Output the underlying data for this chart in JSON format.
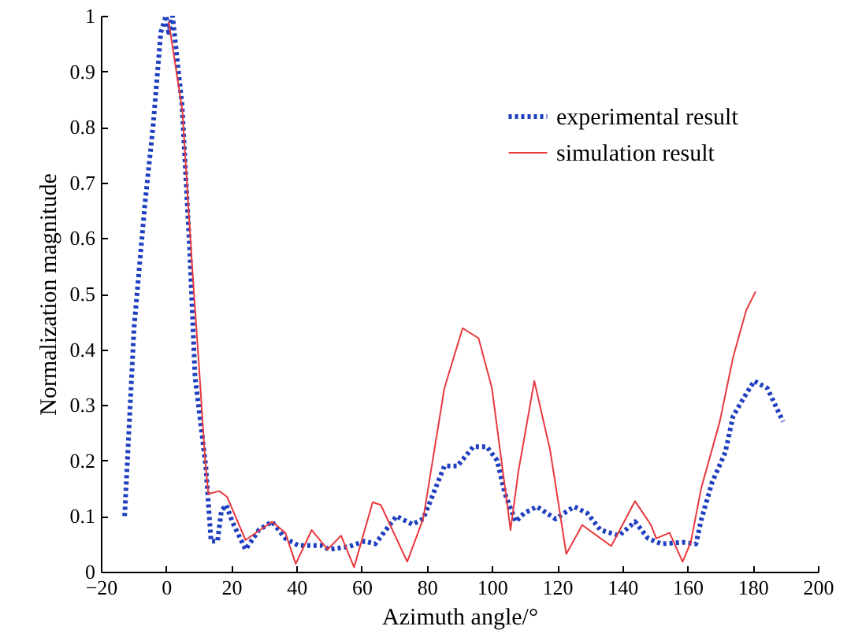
{
  "chart_data": {
    "type": "line",
    "xlabel": "Azimuth angle/°",
    "ylabel": "Normalization magnitude",
    "xlim": [
      -20,
      200
    ],
    "xticks": [
      -20,
      0,
      20,
      40,
      60,
      80,
      100,
      120,
      140,
      160,
      180,
      200
    ],
    "ylim": [
      0,
      1
    ],
    "yticks": [
      0,
      0.1,
      0.2,
      0.3,
      0.4,
      0.5,
      0.6,
      0.7,
      0.8,
      0.9,
      1
    ],
    "grid": false,
    "legend": "top right",
    "series": [
      {
        "name": "experimental result",
        "color": "#1f3fbf",
        "line_style": "dotted",
        "x": [
          -12.7,
          -9.8,
          -6.5,
          -4,
          -1.6,
          0,
          0.8,
          2,
          4.9,
          7.3,
          8.9,
          12.2,
          13.8,
          15.8,
          17,
          18.5,
          20.3,
          24.4,
          28.5,
          32.5,
          36.6,
          40.6,
          47.8,
          50,
          56,
          61,
          64.2,
          70.7,
          75.6,
          78.9,
          85.4,
          89.4,
          94.3,
          98.4,
          101.6,
          104,
          107.3,
          109.8,
          113.8,
          119.5,
          125.2,
          129.3,
          133.3,
          139,
          143.9,
          147.9,
          152,
          158.5,
          162.6,
          164.2,
          167.5,
          171.6,
          174,
          178,
          180.5,
          184.5,
          189.3
        ],
        "values": [
          0.1,
          0.44,
          0.66,
          0.8,
          0.97,
          1,
          0.97,
          1,
          0.84,
          0.575,
          0.35,
          0.19,
          0.055,
          0.055,
          0.11,
          0.12,
          0.09,
          0.04,
          0.075,
          0.09,
          0.06,
          0.047,
          0.047,
          0.04,
          0.045,
          0.055,
          0.05,
          0.1,
          0.085,
          0.095,
          0.19,
          0.19,
          0.225,
          0.225,
          0.2,
          0.14,
          0.09,
          0.105,
          0.117,
          0.095,
          0.117,
          0.105,
          0.075,
          0.065,
          0.09,
          0.06,
          0.05,
          0.053,
          0.05,
          0.093,
          0.16,
          0.215,
          0.28,
          0.32,
          0.343,
          0.33,
          0.27
        ]
      },
      {
        "name": "simulation result",
        "color": "#e8383d",
        "line_style": "solid",
        "x": [
          0.8,
          5,
          8,
          10,
          12,
          13,
          16.3,
          18.7,
          24.4,
          32.5,
          36.6,
          39.8,
          44.7,
          49.6,
          53.7,
          57.7,
          63.4,
          65.9,
          74,
          78.9,
          85.4,
          91,
          95.9,
          100,
          105.7,
          108.1,
          113,
          117.9,
          122.8,
          127.7,
          136.6,
          143.9,
          148.8,
          150.4,
          154.5,
          158.5,
          161,
          164.2,
          169.9,
          174,
          178,
          180.9
        ],
        "values": [
          0.99,
          0.83,
          0.55,
          0.38,
          0.2,
          0.14,
          0.145,
          0.135,
          0.057,
          0.09,
          0.07,
          0.014,
          0.075,
          0.04,
          0.065,
          0.008,
          0.125,
          0.12,
          0.018,
          0.095,
          0.33,
          0.438,
          0.42,
          0.33,
          0.075,
          0.18,
          0.343,
          0.217,
          0.032,
          0.084,
          0.046,
          0.127,
          0.084,
          0.06,
          0.07,
          0.018,
          0.053,
          0.15,
          0.27,
          0.386,
          0.47,
          0.504
        ]
      }
    ]
  }
}
